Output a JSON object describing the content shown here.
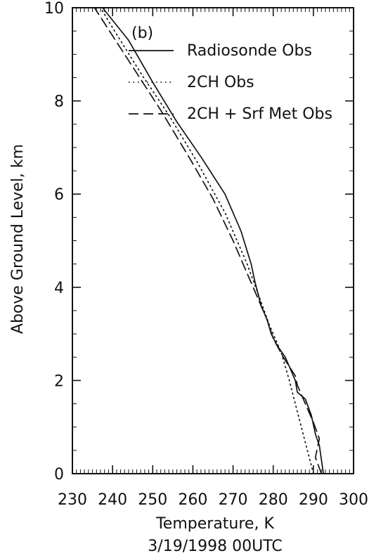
{
  "chart_data": {
    "type": "line",
    "panel_label": "(b)",
    "xlabel": "Temperature, K",
    "subtitle": "3/19/1998 00UTC",
    "ylabel": "Above Ground Level, km",
    "xlim": [
      230,
      300
    ],
    "ylim": [
      0,
      10
    ],
    "xticks": [
      "230",
      "240",
      "250",
      "260",
      "270",
      "280",
      "290",
      "300"
    ],
    "yticks": [
      "0",
      "2",
      "4",
      "6",
      "8",
      "10"
    ],
    "legend_position": "top-right",
    "series": [
      {
        "name": "Radiosonde Obs",
        "style": "solid",
        "color": "#111111",
        "points": [
          [
            292.5,
            0.0
          ],
          [
            291.5,
            0.6
          ],
          [
            290.5,
            0.85
          ],
          [
            289.5,
            1.25
          ],
          [
            288.0,
            1.6
          ],
          [
            286.0,
            1.75
          ],
          [
            285.5,
            2.0
          ],
          [
            284.5,
            2.2
          ],
          [
            283.0,
            2.5
          ],
          [
            281.0,
            2.75
          ],
          [
            279.5,
            3.0
          ],
          [
            278.5,
            3.3
          ],
          [
            277.0,
            3.6
          ],
          [
            275.5,
            4.1
          ],
          [
            274.5,
            4.5
          ],
          [
            272.0,
            5.2
          ],
          [
            268.0,
            6.0
          ],
          [
            262.0,
            6.8
          ],
          [
            256.0,
            7.55
          ],
          [
            250.0,
            8.4
          ],
          [
            244.0,
            9.3
          ],
          [
            237.5,
            10.0
          ]
        ]
      },
      {
        "name": "2CH Obs",
        "style": "dotted",
        "color": "#111111",
        "points": [
          [
            290.0,
            0.0
          ],
          [
            288.5,
            0.5
          ],
          [
            287.0,
            1.0
          ],
          [
            285.5,
            1.5
          ],
          [
            284.0,
            2.0
          ],
          [
            282.0,
            2.6
          ],
          [
            279.0,
            3.2
          ],
          [
            276.5,
            3.8
          ],
          [
            273.5,
            4.5
          ],
          [
            268.0,
            5.6
          ],
          [
            261.0,
            6.7
          ],
          [
            254.0,
            7.7
          ],
          [
            247.0,
            8.6
          ],
          [
            240.5,
            9.5
          ],
          [
            237.0,
            10.0
          ]
        ]
      },
      {
        "name": "2CH + Srf Met Obs",
        "style": "dashed",
        "color": "#111111",
        "points": [
          [
            292.0,
            0.0
          ],
          [
            290.5,
            0.35
          ],
          [
            291.5,
            0.75
          ],
          [
            290.0,
            1.1
          ],
          [
            288.0,
            1.5
          ],
          [
            286.0,
            1.9
          ],
          [
            285.5,
            2.1
          ],
          [
            282.5,
            2.5
          ],
          [
            280.0,
            2.9
          ],
          [
            278.5,
            3.3
          ],
          [
            276.5,
            3.7
          ],
          [
            274.0,
            4.2
          ],
          [
            270.0,
            5.0
          ],
          [
            265.0,
            5.9
          ],
          [
            259.0,
            6.8
          ],
          [
            252.0,
            7.8
          ],
          [
            246.0,
            8.6
          ],
          [
            240.0,
            9.4
          ],
          [
            235.5,
            10.0
          ]
        ]
      }
    ]
  }
}
